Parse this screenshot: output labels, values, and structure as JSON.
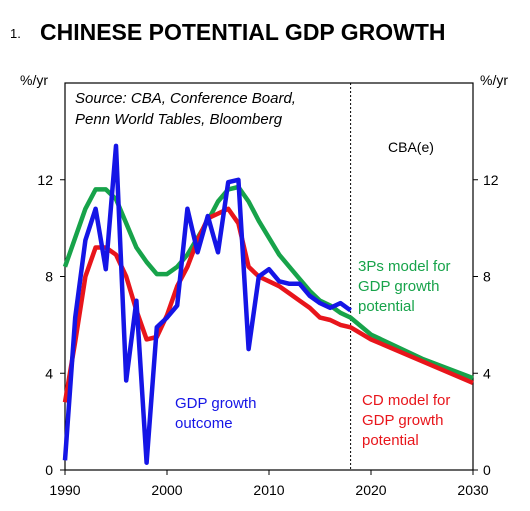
{
  "chart_data": {
    "type": "line",
    "title_number": "1.",
    "title": "CHINESE POTENTIAL GDP GROWTH",
    "ylabel_left": "%/yr",
    "ylabel_right": "%/yr",
    "source": [
      "Source: CBA, Conference Board,",
      "Penn World Tables, Bloomberg"
    ],
    "forecast_label": "CBA(e)",
    "forecast_start": 2018,
    "xlim": [
      1990,
      2030
    ],
    "ylim": [
      0,
      16
    ],
    "x_ticks": [
      1990,
      2000,
      2010,
      2020,
      2030
    ],
    "y_ticks": [
      0,
      4,
      8,
      12
    ],
    "grid": false,
    "series": [
      {
        "key": "cd",
        "color": "#e8151b",
        "label_lines": [
          "CD model for",
          "GDP growth",
          "potential"
        ],
        "points": [
          [
            1990,
            2.8
          ],
          [
            1991,
            5.3
          ],
          [
            1992,
            8.0
          ],
          [
            1993,
            9.2
          ],
          [
            1994,
            9.2
          ],
          [
            1995,
            8.9
          ],
          [
            1996,
            8.0
          ],
          [
            1997,
            6.6
          ],
          [
            1998,
            5.4
          ],
          [
            1999,
            5.5
          ],
          [
            2000,
            6.4
          ],
          [
            2001,
            7.6
          ],
          [
            2002,
            8.4
          ],
          [
            2003,
            9.5
          ],
          [
            2004,
            10.4
          ],
          [
            2005,
            10.6
          ],
          [
            2006,
            10.8
          ],
          [
            2007,
            10.2
          ],
          [
            2008,
            8.4
          ],
          [
            2009,
            8.0
          ],
          [
            2010,
            7.8
          ],
          [
            2011,
            7.6
          ],
          [
            2012,
            7.3
          ],
          [
            2013,
            7.0
          ],
          [
            2014,
            6.7
          ],
          [
            2015,
            6.3
          ],
          [
            2016,
            6.2
          ],
          [
            2017,
            6.0
          ],
          [
            2018,
            5.9
          ],
          [
            2020,
            5.4
          ],
          [
            2025,
            4.5
          ],
          [
            2030,
            3.6
          ]
        ]
      },
      {
        "key": "threeps",
        "color": "#17a34a",
        "label_lines": [
          "3Ps model for",
          "GDP growth",
          "potential"
        ],
        "points": [
          [
            1990,
            8.4
          ],
          [
            1991,
            9.6
          ],
          [
            1992,
            10.8
          ],
          [
            1993,
            11.6
          ],
          [
            1994,
            11.6
          ],
          [
            1995,
            11.2
          ],
          [
            1996,
            10.2
          ],
          [
            1997,
            9.2
          ],
          [
            1998,
            8.6
          ],
          [
            1999,
            8.1
          ],
          [
            2000,
            8.1
          ],
          [
            2001,
            8.4
          ],
          [
            2002,
            8.9
          ],
          [
            2003,
            9.6
          ],
          [
            2004,
            10.3
          ],
          [
            2005,
            11.1
          ],
          [
            2006,
            11.6
          ],
          [
            2007,
            11.7
          ],
          [
            2008,
            11.1
          ],
          [
            2009,
            10.3
          ],
          [
            2010,
            9.6
          ],
          [
            2011,
            8.9
          ],
          [
            2012,
            8.4
          ],
          [
            2013,
            7.9
          ],
          [
            2014,
            7.4
          ],
          [
            2015,
            7.0
          ],
          [
            2016,
            6.8
          ],
          [
            2017,
            6.5
          ],
          [
            2018,
            6.3
          ],
          [
            2020,
            5.6
          ],
          [
            2025,
            4.6
          ],
          [
            2030,
            3.8
          ]
        ]
      },
      {
        "key": "gdp",
        "color": "#1515e6",
        "label_lines": [
          "GDP growth",
          "outcome"
        ],
        "points": [
          [
            1990,
            0.4
          ],
          [
            1991,
            6.3
          ],
          [
            1992,
            9.5
          ],
          [
            1993,
            10.8
          ],
          [
            1994,
            8.3
          ],
          [
            1995,
            13.4
          ],
          [
            1996,
            3.7
          ],
          [
            1997,
            7.0
          ],
          [
            1998,
            0.3
          ],
          [
            1999,
            5.9
          ],
          [
            2000,
            6.3
          ],
          [
            2001,
            6.8
          ],
          [
            2002,
            10.8
          ],
          [
            2003,
            9.0
          ],
          [
            2004,
            10.5
          ],
          [
            2005,
            9.0
          ],
          [
            2006,
            11.9
          ],
          [
            2007,
            12.0
          ],
          [
            2008,
            5.0
          ],
          [
            2009,
            8.0
          ],
          [
            2010,
            8.3
          ],
          [
            2011,
            7.8
          ],
          [
            2012,
            7.7
          ],
          [
            2013,
            7.7
          ],
          [
            2014,
            7.2
          ],
          [
            2015,
            6.9
          ],
          [
            2016,
            6.7
          ],
          [
            2017,
            6.9
          ],
          [
            2018,
            6.6
          ]
        ]
      }
    ]
  }
}
